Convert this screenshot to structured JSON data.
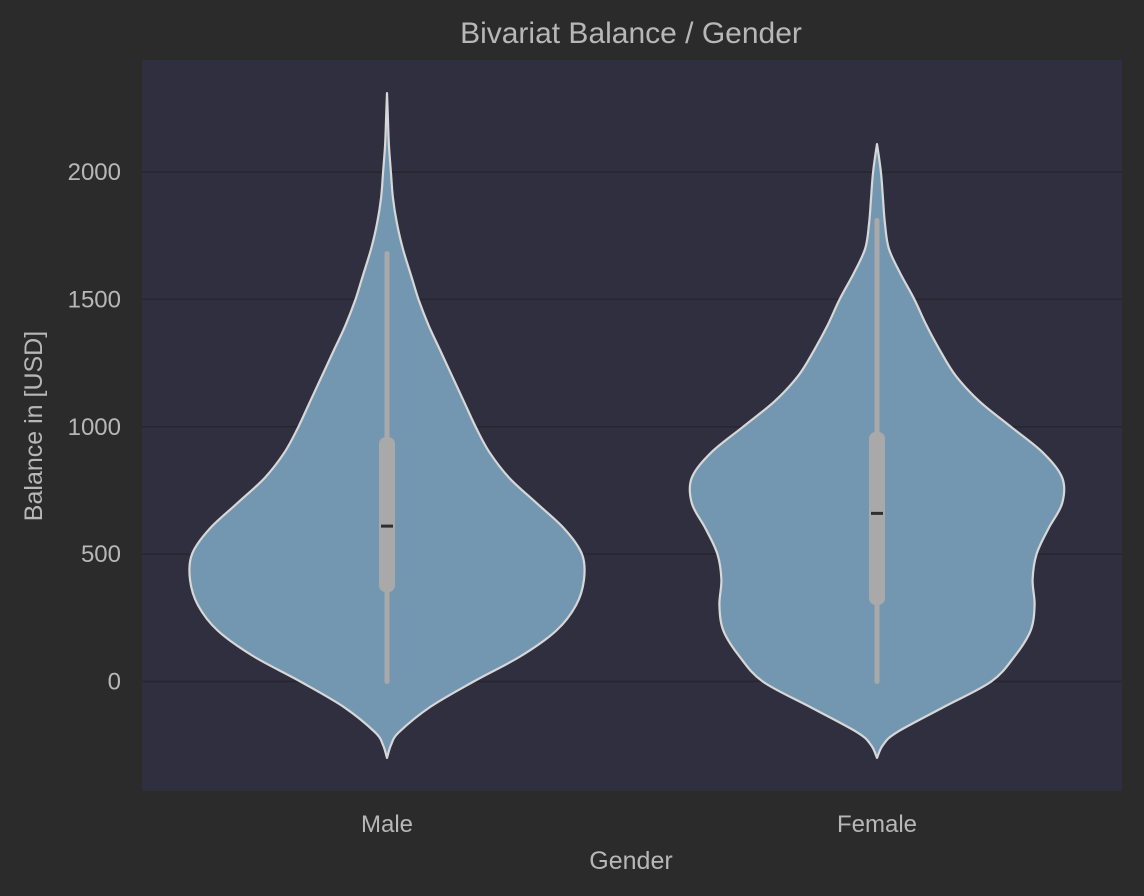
{
  "chart_data": {
    "type": "violin",
    "title": "Bivariat Balance / Gender",
    "xlabel": "Gender",
    "ylabel": "Balance in [USD]",
    "ylim": [
      -430,
      2440
    ],
    "yticks": [
      0,
      500,
      1000,
      1500,
      2000
    ],
    "grid": true,
    "categories": [
      "Male",
      "Female"
    ],
    "series": [
      {
        "category": "Male",
        "min": 0,
        "q1": 350,
        "median": 610,
        "q3": 960,
        "max": 1680,
        "kde_min": -300,
        "kde_max": 2310,
        "density": [
          [
            -300,
            0.0
          ],
          [
            -250,
            0.02
          ],
          [
            -200,
            0.06
          ],
          [
            -100,
            0.22
          ],
          [
            0,
            0.44
          ],
          [
            100,
            0.68
          ],
          [
            200,
            0.86
          ],
          [
            300,
            0.96
          ],
          [
            400,
            1.0
          ],
          [
            500,
            0.99
          ],
          [
            600,
            0.9
          ],
          [
            700,
            0.76
          ],
          [
            800,
            0.62
          ],
          [
            900,
            0.52
          ],
          [
            1000,
            0.45
          ],
          [
            1100,
            0.39
          ],
          [
            1200,
            0.33
          ],
          [
            1300,
            0.27
          ],
          [
            1400,
            0.21
          ],
          [
            1500,
            0.16
          ],
          [
            1600,
            0.12
          ],
          [
            1700,
            0.08
          ],
          [
            1800,
            0.05
          ],
          [
            1900,
            0.03
          ],
          [
            2000,
            0.02
          ],
          [
            2100,
            0.01
          ],
          [
            2200,
            0.005
          ],
          [
            2310,
            0.0
          ]
        ]
      },
      {
        "category": "Female",
        "min": 0,
        "q1": 300,
        "median": 660,
        "q3": 980,
        "max": 1810,
        "kde_min": -300,
        "kde_max": 2110,
        "density": [
          [
            -300,
            0.0
          ],
          [
            -250,
            0.03
          ],
          [
            -200,
            0.1
          ],
          [
            -100,
            0.34
          ],
          [
            0,
            0.58
          ],
          [
            100,
            0.7
          ],
          [
            200,
            0.78
          ],
          [
            300,
            0.8
          ],
          [
            400,
            0.79
          ],
          [
            500,
            0.81
          ],
          [
            600,
            0.87
          ],
          [
            700,
            0.94
          ],
          [
            800,
            0.94
          ],
          [
            900,
            0.84
          ],
          [
            1000,
            0.68
          ],
          [
            1100,
            0.52
          ],
          [
            1200,
            0.4
          ],
          [
            1300,
            0.32
          ],
          [
            1400,
            0.25
          ],
          [
            1500,
            0.19
          ],
          [
            1600,
            0.12
          ],
          [
            1700,
            0.06
          ],
          [
            1800,
            0.04
          ],
          [
            1900,
            0.03
          ],
          [
            2000,
            0.02
          ],
          [
            2110,
            0.0
          ]
        ]
      }
    ]
  },
  "colors": {
    "figure_bg": "#2b2b2b",
    "plot_bg": "#302f3f",
    "grid": "#27262f",
    "violin_fill": "#7497b1",
    "violin_edge": "#d7d7d7",
    "box": "#a9a9a9",
    "median": "#2f2f2f",
    "text": "#b7b7b7"
  }
}
